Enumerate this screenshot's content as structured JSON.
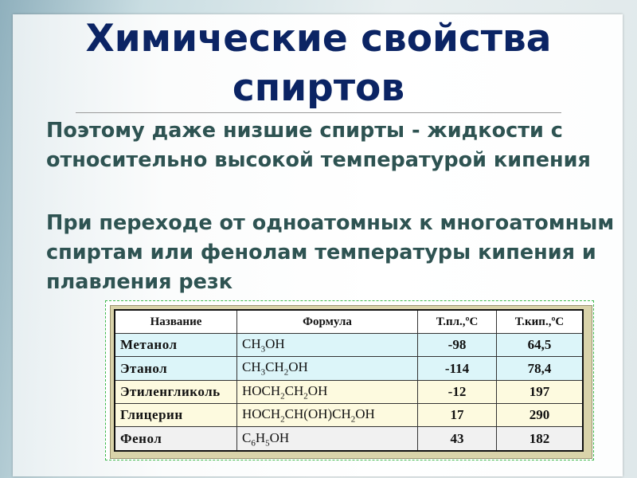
{
  "slide": {
    "title_line1": "Химические свойства",
    "title_line2": "спиртов",
    "paragraph1": "Поэтому даже низшие спирты - жидкости с относительно высокой температурой кипения",
    "paragraph2": "При переходе от одноатомных к многоатомным спиртам или фенолам температуры кипения и плавления резк"
  },
  "colors": {
    "title": "#0b2464",
    "body_text": "#2e5352",
    "row_cyan": "#dcf5f9",
    "row_yellow": "#fdfadf",
    "row_grey": "#f1f1f1"
  },
  "table": {
    "headers": [
      "Название",
      "Формула",
      "Т.пл.,ºС",
      "Т.кип.,ºС"
    ],
    "rows": [
      {
        "name": "Метанол",
        "formula": [
          [
            "CH",
            ""
          ],
          [
            "3",
            "sub"
          ],
          [
            "OH",
            ""
          ]
        ],
        "mp": "-98",
        "bp": "64,5",
        "tone": "cyan"
      },
      {
        "name": "Этанол",
        "formula": [
          [
            "CH",
            ""
          ],
          [
            "3",
            "sub"
          ],
          [
            "CH",
            ""
          ],
          [
            "2",
            "sub"
          ],
          [
            "OH",
            ""
          ]
        ],
        "mp": "-114",
        "bp": "78,4",
        "tone": "cyan"
      },
      {
        "name": "Этиленгликоль",
        "formula": [
          [
            "HOCH",
            ""
          ],
          [
            "2",
            "sub"
          ],
          [
            "CH",
            ""
          ],
          [
            "2",
            "sub"
          ],
          [
            "OH",
            ""
          ]
        ],
        "mp": "-12",
        "bp": "197",
        "tone": "yellow"
      },
      {
        "name": "Глицерин",
        "formula": [
          [
            "HOCH",
            ""
          ],
          [
            "2",
            "sub"
          ],
          [
            "CH(OH)CH",
            ""
          ],
          [
            "2",
            "sub"
          ],
          [
            "OH",
            ""
          ]
        ],
        "mp": "17",
        "bp": "290",
        "tone": "yellow"
      },
      {
        "name": "Фенол",
        "formula": [
          [
            "C",
            ""
          ],
          [
            "6",
            "sub"
          ],
          [
            "H",
            ""
          ],
          [
            "5",
            "sub"
          ],
          [
            "OH",
            ""
          ]
        ],
        "mp": "43",
        "bp": "182",
        "tone": "grey"
      }
    ]
  }
}
